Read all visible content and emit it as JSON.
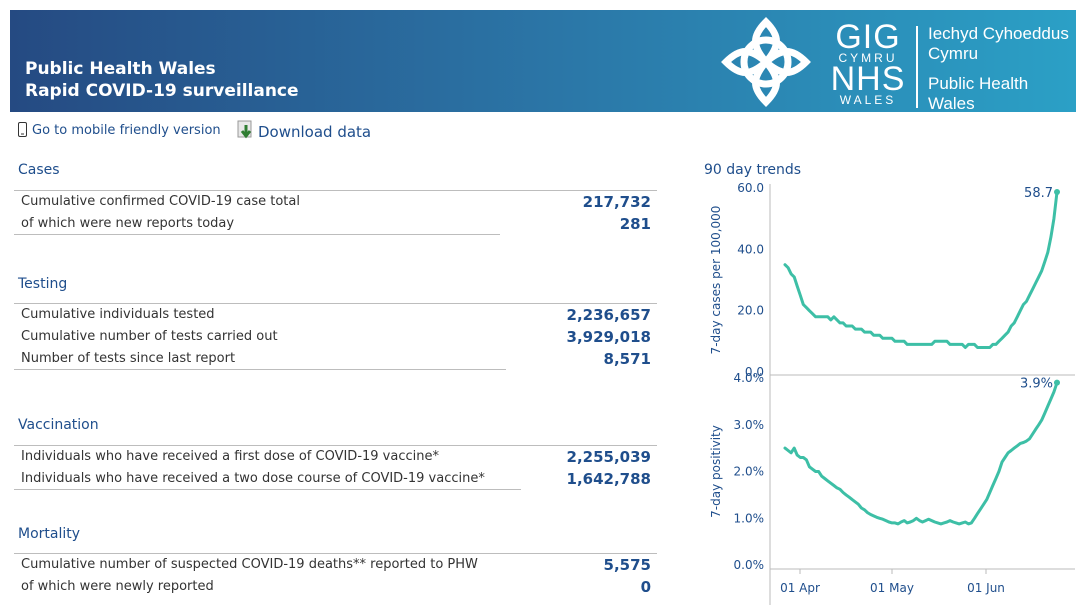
{
  "header": {
    "title_line1": "Public Health Wales",
    "title_line2": "Rapid COVID-19 surveillance",
    "gig_line1": "GIG",
    "gig_line2": "CYMRU",
    "gig_line3": "NHS",
    "gig_line4": "WALES",
    "org_welsh_line1": "Iechyd Cyhoeddus",
    "org_welsh_line2": "Cymru",
    "org_english_line1": "Public Health",
    "org_english_line2": "Wales"
  },
  "toolbar": {
    "mobile_link": "Go to mobile friendly version",
    "download_link": "Download data"
  },
  "cases": {
    "title": "Cases",
    "rows": [
      {
        "label": "Cumulative confirmed COVID-19 case total",
        "value": "217,732"
      },
      {
        "label": "of which were new reports today",
        "value": "281"
      }
    ]
  },
  "testing": {
    "title": "Testing",
    "rows": [
      {
        "label": "Cumulative individuals tested",
        "value": "2,236,657"
      },
      {
        "label": "Cumulative number of tests carried out",
        "value": "3,929,018"
      },
      {
        "label": "Number of tests since last report",
        "value": "8,571"
      }
    ]
  },
  "vaccination": {
    "title": "Vaccination",
    "rows": [
      {
        "label": "Individuals who have received a first dose of COVID-19 vaccine*",
        "value": "2,255,039"
      },
      {
        "label": "Individuals who have received a two dose course of COVID-19 vaccine*",
        "value": "1,642,788"
      }
    ]
  },
  "mortality": {
    "title": "Mortality",
    "rows": [
      {
        "label": "Cumulative number of suspected COVID-19 deaths** reported to PHW",
        "value": "5,575"
      },
      {
        "label": "of which were newly reported",
        "value": "0"
      }
    ]
  },
  "trends_title": "90 day trends",
  "colors": {
    "line": "#3dbfa6",
    "text": "#1f4e8c",
    "header_start": "#254a82",
    "header_end": "#2ba0c6"
  },
  "chart_data": [
    {
      "type": "line",
      "ylabel": "7-day cases per 100,000",
      "ylim": [
        0,
        60
      ],
      "yticks": [
        "0.0",
        "20.0",
        "40.0",
        "60.0"
      ],
      "ytick_values": [
        0,
        20,
        40,
        60
      ],
      "end_label": "58.7",
      "x": [
        0,
        1,
        2,
        3,
        4,
        5,
        6,
        7,
        8,
        9,
        10,
        11,
        12,
        13,
        14,
        15,
        16,
        17,
        18,
        19,
        20,
        21,
        22,
        23,
        24,
        25,
        26,
        27,
        28,
        29,
        30,
        31,
        32,
        33,
        34,
        35,
        36,
        37,
        38,
        39,
        40,
        41,
        42,
        43,
        44,
        45,
        46,
        47,
        48,
        49,
        50,
        51,
        52,
        53,
        54,
        55,
        56,
        57,
        58,
        59,
        60,
        61,
        62,
        63,
        64,
        65,
        66,
        67,
        68,
        69,
        70,
        71,
        72,
        73,
        74,
        75,
        76,
        77,
        78,
        79,
        80,
        81,
        82,
        83,
        84,
        85,
        86,
        87,
        88,
        89
      ],
      "values": [
        35,
        34,
        32,
        31,
        28,
        25,
        22,
        21,
        20,
        19,
        18,
        18,
        18,
        18,
        18,
        17,
        18,
        17,
        16,
        16,
        15,
        15,
        15,
        14,
        14,
        14,
        13,
        13,
        13,
        12,
        12,
        12,
        11,
        11,
        11,
        11,
        10,
        10,
        10,
        10,
        9,
        9,
        9,
        9,
        9,
        9,
        9,
        9,
        9,
        10,
        10,
        10,
        10,
        10,
        9,
        9,
        9,
        9,
        9,
        8,
        9,
        9,
        9,
        8,
        8,
        8,
        8,
        8,
        9,
        9,
        10,
        11,
        12,
        13,
        15,
        16,
        18,
        20,
        22,
        23,
        25,
        27,
        29,
        31,
        33,
        36,
        39,
        44,
        50,
        58.7
      ]
    },
    {
      "type": "line",
      "ylabel": "7-day positivity",
      "ylim": [
        0,
        4
      ],
      "yticks": [
        "0.0%",
        "1.0%",
        "2.0%",
        "3.0%",
        "4.0%"
      ],
      "ytick_values": [
        0,
        1,
        2,
        3,
        4
      ],
      "end_label": "3.9%",
      "x": [
        0,
        1,
        2,
        3,
        4,
        5,
        6,
        7,
        8,
        9,
        10,
        11,
        12,
        13,
        14,
        15,
        16,
        17,
        18,
        19,
        20,
        21,
        22,
        23,
        24,
        25,
        26,
        27,
        28,
        29,
        30,
        31,
        32,
        33,
        34,
        35,
        36,
        37,
        38,
        39,
        40,
        41,
        42,
        43,
        44,
        45,
        46,
        47,
        48,
        49,
        50,
        51,
        52,
        53,
        54,
        55,
        56,
        57,
        58,
        59,
        60,
        61,
        62,
        63,
        64,
        65,
        66,
        67,
        68,
        69,
        70,
        71,
        72,
        73,
        74,
        75,
        76,
        77,
        78,
        79,
        80,
        81,
        82,
        83,
        84,
        85,
        86,
        87,
        88,
        89
      ],
      "values": [
        2.5,
        2.45,
        2.4,
        2.5,
        2.35,
        2.3,
        2.3,
        2.25,
        2.1,
        2.05,
        2.0,
        2.0,
        1.9,
        1.85,
        1.8,
        1.75,
        1.7,
        1.65,
        1.62,
        1.55,
        1.5,
        1.45,
        1.4,
        1.35,
        1.3,
        1.22,
        1.18,
        1.12,
        1.08,
        1.05,
        1.02,
        1.0,
        0.98,
        0.95,
        0.92,
        0.9,
        0.9,
        0.88,
        0.92,
        0.95,
        0.9,
        0.92,
        0.95,
        1.0,
        0.95,
        0.92,
        0.95,
        0.98,
        0.95,
        0.92,
        0.9,
        0.88,
        0.9,
        0.92,
        0.95,
        0.92,
        0.9,
        0.88,
        0.9,
        0.92,
        0.88,
        0.9,
        1.0,
        1.1,
        1.2,
        1.3,
        1.4,
        1.55,
        1.7,
        1.85,
        2.0,
        2.2,
        2.3,
        2.4,
        2.45,
        2.5,
        2.55,
        2.6,
        2.62,
        2.65,
        2.7,
        2.8,
        2.9,
        3.0,
        3.1,
        3.25,
        3.4,
        3.55,
        3.7,
        3.9
      ]
    }
  ],
  "x_ticks": [
    "01 Apr",
    "01 May",
    "01 Jun"
  ]
}
